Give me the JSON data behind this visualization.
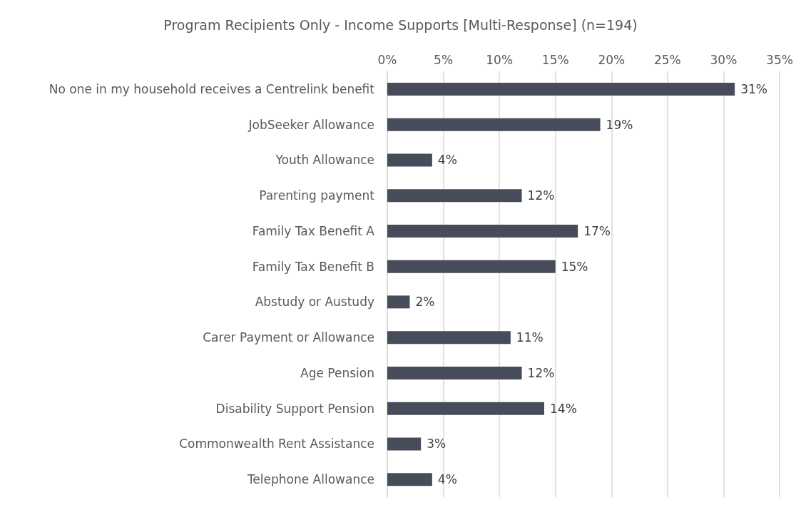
{
  "chart_data": {
    "type": "bar",
    "orientation": "horizontal",
    "title": "Program Recipients Only - Income Supports [Multi-Response] (n=194)",
    "categories": [
      "No one in my household receives a Centrelink benefit",
      "JobSeeker Allowance",
      "Youth Allowance",
      "Parenting payment",
      "Family Tax Benefit A",
      "Family Tax Benefit B",
      "Abstudy or Austudy",
      "Carer Payment or Allowance",
      "Age Pension",
      "Disability Support Pension",
      "Commonwealth Rent Assistance",
      "Telephone Allowance"
    ],
    "values": [
      31,
      19,
      4,
      12,
      17,
      15,
      2,
      11,
      12,
      14,
      3,
      4
    ],
    "value_labels": [
      "31%",
      "19%",
      "4%",
      "12%",
      "17%",
      "15%",
      "2%",
      "11%",
      "12%",
      "14%",
      "3%",
      "4%"
    ],
    "color": "#464c59",
    "xlim": [
      0,
      35
    ],
    "xticks": [
      {
        "value": 0,
        "label": "0%"
      },
      {
        "value": 5,
        "label": "5%"
      },
      {
        "value": 10,
        "label": "10%"
      },
      {
        "value": 15,
        "label": "15%"
      },
      {
        "value": 20,
        "label": "20%"
      },
      {
        "value": 25,
        "label": "25%"
      },
      {
        "value": 30,
        "label": "30%"
      },
      {
        "value": 35,
        "label": "35%"
      }
    ],
    "grid": "x"
  }
}
